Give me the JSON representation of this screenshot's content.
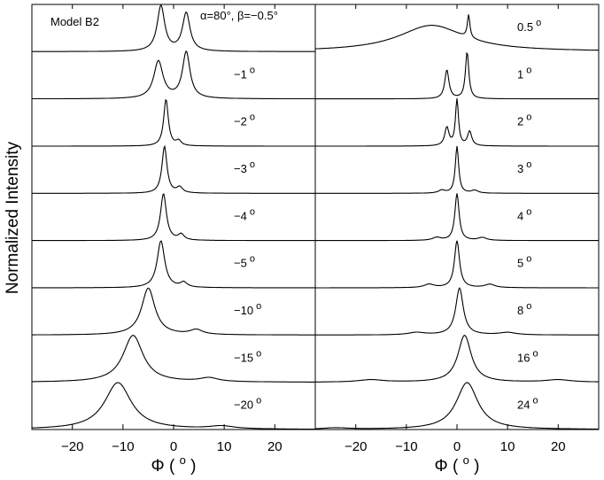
{
  "chart_data": {
    "type": "line",
    "ylabel": "Normalized Intensity",
    "model_label": "Model B2",
    "header_label": "α=80°, β=−0.5°",
    "x_range": [
      -28,
      28
    ],
    "x_ticks": [
      {
        "value": -20,
        "label": "−20"
      },
      {
        "value": -10,
        "label": "−10"
      },
      {
        "value": 0,
        "label": "0"
      },
      {
        "value": 10,
        "label": "10"
      },
      {
        "value": 20,
        "label": "20"
      }
    ],
    "xlabel_symbol": "Φ",
    "xlabel_unit": "o",
    "panels": [
      {
        "side": "left",
        "series": [
          {
            "label": "",
            "peaks": [
              [
                -2.5,
                0.9,
                0.95
              ],
              [
                2.5,
                0.9,
                0.8
              ]
            ]
          },
          {
            "label": "−1",
            "peaks": [
              [
                -3.0,
                1.1,
                0.78
              ],
              [
                2.5,
                0.9,
                0.97
              ]
            ]
          },
          {
            "label": "−2",
            "peaks": [
              [
                -1.5,
                0.55,
                0.98
              ],
              [
                1.0,
                0.6,
                0.1
              ]
            ]
          },
          {
            "label": "−3",
            "peaks": [
              [
                -1.8,
                0.6,
                0.98
              ],
              [
                1.2,
                0.7,
                0.12
              ]
            ]
          },
          {
            "label": "−4",
            "peaks": [
              [
                -2.0,
                0.7,
                0.98
              ],
              [
                1.5,
                0.7,
                0.12
              ]
            ]
          },
          {
            "label": "−5",
            "peaks": [
              [
                -2.5,
                0.9,
                0.98
              ],
              [
                2.0,
                0.8,
                0.1
              ]
            ]
          },
          {
            "label": "−10",
            "peaks": [
              [
                -5.0,
                1.6,
                0.98
              ],
              [
                4.5,
                1.5,
                0.1
              ]
            ]
          },
          {
            "label": "−15",
            "peaks": [
              [
                -8.0,
                2.4,
                0.98
              ],
              [
                7.0,
                2.2,
                0.08
              ]
            ]
          },
          {
            "label": "−20",
            "peaks": [
              [
                -11.0,
                3.2,
                0.98
              ],
              [
                9.5,
                3.0,
                0.06
              ]
            ]
          }
        ]
      },
      {
        "side": "right",
        "series": [
          {
            "label": "0.5",
            "peaks": [
              [
                2.3,
                0.3,
                0.48
              ],
              [
                -5.0,
                8.0,
                0.55
              ]
            ]
          },
          {
            "label": "1",
            "peaks": [
              [
                -2.0,
                0.5,
                0.6
              ],
              [
                2.0,
                0.4,
                0.98
              ]
            ]
          },
          {
            "label": "2",
            "peaks": [
              [
                0.0,
                0.35,
                0.98
              ],
              [
                -2.0,
                0.5,
                0.38
              ],
              [
                2.5,
                0.5,
                0.3
              ]
            ]
          },
          {
            "label": "3",
            "peaks": [
              [
                0.0,
                0.4,
                0.98
              ],
              [
                -3.0,
                0.8,
                0.06
              ],
              [
                3.5,
                0.8,
                0.06
              ]
            ]
          },
          {
            "label": "4",
            "peaks": [
              [
                0.0,
                0.5,
                0.98
              ],
              [
                -4.0,
                1.0,
                0.06
              ],
              [
                5.0,
                1.0,
                0.06
              ]
            ]
          },
          {
            "label": "5",
            "peaks": [
              [
                0.0,
                0.6,
                0.98
              ],
              [
                -5.5,
                1.2,
                0.07
              ],
              [
                6.5,
                1.2,
                0.07
              ]
            ]
          },
          {
            "label": "8",
            "peaks": [
              [
                0.5,
                0.9,
                0.98
              ],
              [
                -8.0,
                2.0,
                0.05
              ],
              [
                10.0,
                2.0,
                0.05
              ]
            ]
          },
          {
            "label": "16",
            "peaks": [
              [
                1.5,
                1.6,
                0.98
              ],
              [
                -17.0,
                3.0,
                0.05
              ],
              [
                20.0,
                3.0,
                0.05
              ]
            ]
          },
          {
            "label": "24",
            "peaks": [
              [
                2.0,
                2.6,
                0.98
              ],
              [
                -24.0,
                3.0,
                0.03
              ]
            ]
          }
        ]
      }
    ]
  }
}
